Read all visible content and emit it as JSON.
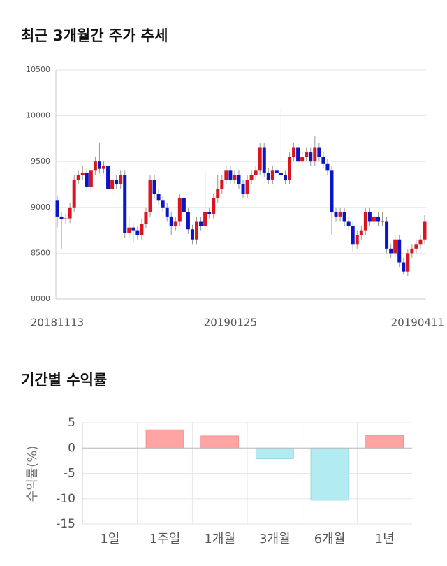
{
  "chart_data": [
    {
      "type": "candlestick",
      "title": "최근 3개월간 주가 추세",
      "categories": [
        "20181113",
        null,
        null,
        null,
        null,
        null,
        null,
        null,
        null,
        null,
        null,
        null,
        null,
        null,
        null,
        null,
        null,
        null,
        null,
        null,
        null,
        null,
        null,
        null,
        null,
        null,
        null,
        null,
        null,
        null,
        null,
        null,
        null,
        null,
        null,
        null,
        null,
        null,
        null,
        null,
        null,
        "20190125",
        null,
        null,
        null,
        null,
        null,
        null,
        null,
        null,
        null,
        null,
        null,
        null,
        null,
        null,
        null,
        null,
        null,
        null,
        null,
        null,
        null,
        null,
        null,
        null,
        null,
        null,
        null,
        null,
        null,
        null,
        null,
        null,
        null,
        null,
        null,
        null,
        null,
        null,
        null,
        null,
        null,
        null,
        null,
        null,
        null,
        "20190411"
      ],
      "open": [
        9080,
        8900,
        8870,
        8880,
        9000,
        9300,
        9350,
        9380,
        9220,
        9400,
        9500,
        9420,
        9450,
        9200,
        9300,
        9250,
        9350,
        8720,
        8780,
        8750,
        8700,
        8820,
        8950,
        9300,
        9150,
        9080,
        9000,
        8900,
        8800,
        8850,
        9100,
        8950,
        8760,
        8650,
        8850,
        8800,
        8950,
        8930,
        9100,
        9200,
        9300,
        9400,
        9300,
        9350,
        9250,
        9150,
        9300,
        9350,
        9400,
        9650,
        9380,
        9300,
        9400,
        9380,
        9350,
        9300,
        9550,
        9650,
        9500,
        9550,
        9600,
        9500,
        9650,
        9550,
        9480,
        9400,
        8950,
        8900,
        8950,
        8850,
        8800,
        8600,
        8700,
        8750,
        8950,
        8850,
        8900,
        8850,
        8850,
        8550,
        8500,
        8650,
        8400,
        8300,
        8500,
        8550,
        8600,
        8650
      ],
      "high": [
        9130,
        8950,
        8930,
        9050,
        9350,
        9400,
        9450,
        9430,
        9450,
        9550,
        9700,
        9500,
        9500,
        9350,
        9350,
        9400,
        9400,
        8900,
        8830,
        8800,
        8870,
        9000,
        9350,
        9350,
        9200,
        9130,
        9050,
        8950,
        8900,
        9150,
        9150,
        9000,
        8810,
        8900,
        8900,
        9400,
        9000,
        9150,
        9350,
        9350,
        9450,
        9450,
        9400,
        9400,
        9300,
        9350,
        9400,
        9450,
        9700,
        9700,
        9430,
        9450,
        9450,
        10100,
        9400,
        9600,
        9700,
        9700,
        9600,
        9650,
        9650,
        9780,
        9700,
        9600,
        9530,
        9450,
        9000,
        9000,
        9000,
        8900,
        8850,
        8750,
        8800,
        9000,
        9000,
        8950,
        8950,
        8950,
        8900,
        8600,
        8700,
        8700,
        8450,
        8550,
        8600,
        8650,
        8700,
        8920
      ],
      "low": [
        8780,
        8550,
        8820,
        8830,
        8950,
        9250,
        9300,
        9170,
        9170,
        9350,
        9370,
        9370,
        9150,
        9150,
        9200,
        9200,
        8670,
        8670,
        8620,
        8650,
        8650,
        8770,
        8900,
        9100,
        9030,
        8950,
        8850,
        8700,
        8750,
        8800,
        8900,
        8710,
        8600,
        8600,
        8750,
        8750,
        8880,
        8880,
        9050,
        9150,
        9250,
        9250,
        9250,
        9200,
        9100,
        9100,
        9250,
        9300,
        9350,
        9330,
        9250,
        9250,
        9330,
        9300,
        9250,
        9250,
        9500,
        9450,
        9450,
        9500,
        9450,
        9450,
        9500,
        9430,
        9350,
        8700,
        8850,
        8850,
        8800,
        8750,
        8520,
        8550,
        8650,
        8700,
        8800,
        8800,
        8800,
        8800,
        8500,
        8450,
        8450,
        8350,
        8270,
        8250,
        8450,
        8500,
        8550,
        8600
      ],
      "close": [
        8900,
        8870,
        8880,
        9000,
        9300,
        9350,
        9380,
        9220,
        9400,
        9500,
        9420,
        9450,
        9200,
        9300,
        9250,
        9350,
        8720,
        8780,
        8750,
        8700,
        8820,
        8950,
        9300,
        9150,
        9080,
        9000,
        8900,
        8800,
        8850,
        9100,
        8950,
        8760,
        8650,
        8850,
        8800,
        8950,
        8930,
        9100,
        9200,
        9300,
        9400,
        9300,
        9350,
        9250,
        9150,
        9300,
        9350,
        9400,
        9650,
        9380,
        9300,
        9400,
        9380,
        9350,
        9300,
        9550,
        9650,
        9500,
        9550,
        9600,
        9500,
        9650,
        9550,
        9480,
        9400,
        8950,
        8900,
        8950,
        8850,
        8800,
        8600,
        8700,
        8750,
        8950,
        8850,
        8900,
        8850,
        8850,
        8550,
        8500,
        8650,
        8400,
        8300,
        8500,
        8550,
        8600,
        8650,
        8850
      ],
      "up_color": "#d9161d",
      "down_color": "#0a14c8",
      "ylim": [
        8000,
        10500
      ],
      "yticks": [
        8000,
        8500,
        9000,
        9500,
        10000,
        10500
      ],
      "grid": true
    },
    {
      "type": "bar",
      "title": "기간별 수익률",
      "ylabel": "수익률(%)",
      "categories": [
        "1일",
        "1주일",
        "1개월",
        "3개월",
        "6개월",
        "1년"
      ],
      "values": [
        0,
        3.6,
        2.4,
        -2.1,
        -10.3,
        2.5
      ],
      "positive_color": "#ffa3a3",
      "negative_color": "#b3ebf2",
      "ylim": [
        -15,
        5
      ],
      "yticks": [
        -15,
        -10,
        -5,
        0,
        5
      ],
      "grid": true
    }
  ]
}
